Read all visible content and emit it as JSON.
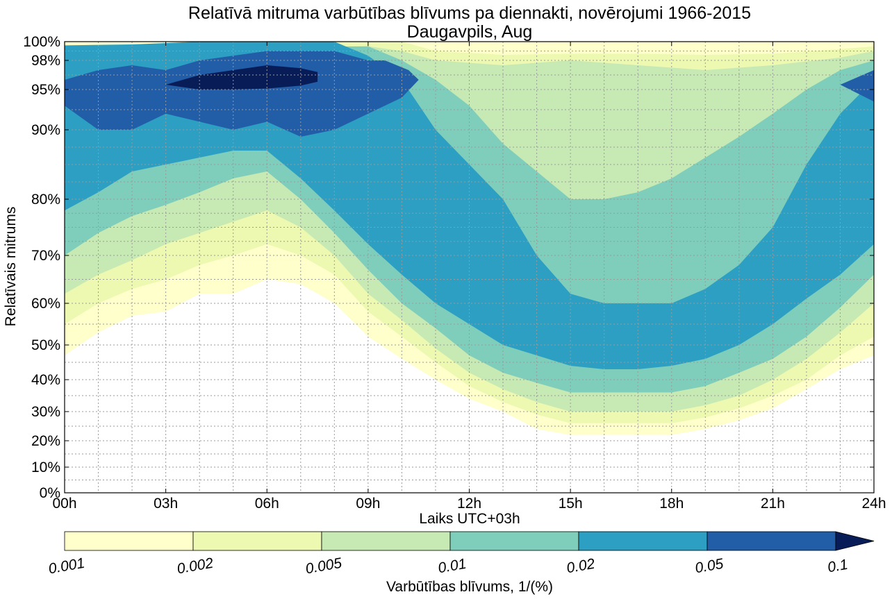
{
  "chart_data": {
    "type": "contourf",
    "title": "Relatīvā mitruma varbūtības blīvums pa diennakti, novērojumi 1966-2015",
    "subtitle": "Daugavpils, Aug",
    "xlabel": "Laiks UTC+03h",
    "ylabel": "Relatīvais mitrums",
    "x_ticks": [
      "00h",
      "03h",
      "06h",
      "09h",
      "12h",
      "15h",
      "18h",
      "21h",
      "24h"
    ],
    "xlim": [
      0,
      24
    ],
    "y_ticks": [
      {
        "value": 0,
        "label": "0%"
      },
      {
        "value": 10,
        "label": "10%"
      },
      {
        "value": 20,
        "label": "20%"
      },
      {
        "value": 30,
        "label": "30%"
      },
      {
        "value": 40,
        "label": "40%"
      },
      {
        "value": 50,
        "label": "50%"
      },
      {
        "value": 60,
        "label": "60%"
      },
      {
        "value": 70,
        "label": "70%"
      },
      {
        "value": 80,
        "label": "80%"
      },
      {
        "value": 90,
        "label": "90%"
      },
      {
        "value": 95,
        "label": "95%"
      },
      {
        "value": 98,
        "label": "98%"
      },
      {
        "value": 100,
        "label": "100%"
      }
    ],
    "ylim": [
      0,
      100
    ],
    "grid": true,
    "colorbar": {
      "label": "Varbūtības blīvums, 1/(%)",
      "levels": [
        "0.001",
        "0.002",
        "0.005",
        "0.01",
        "0.02",
        "0.05",
        "0.1"
      ],
      "colors": [
        "#ffffcc",
        "#edf8b1",
        "#c7e9b4",
        "#7fcdbb",
        "#2c9fc3",
        "#225ea8",
        "#081d58"
      ],
      "extend": "max"
    },
    "contours": [
      {
        "level": "0.001",
        "color": "#ffffcc",
        "lower": [
          [
            0,
            47
          ],
          [
            1,
            53
          ],
          [
            2,
            57
          ],
          [
            3,
            58
          ],
          [
            4,
            62
          ],
          [
            5,
            62
          ],
          [
            6,
            65
          ],
          [
            7,
            64
          ],
          [
            8,
            60
          ],
          [
            9,
            52
          ],
          [
            10,
            46
          ],
          [
            11,
            40
          ],
          [
            12,
            34
          ],
          [
            13,
            30
          ],
          [
            14,
            24
          ],
          [
            15,
            22
          ],
          [
            16,
            22
          ],
          [
            17,
            22
          ],
          [
            18,
            22
          ],
          [
            19,
            24
          ],
          [
            20,
            27
          ],
          [
            21,
            31
          ],
          [
            22,
            37
          ],
          [
            23,
            43
          ],
          [
            24,
            47
          ]
        ],
        "upper": [
          [
            0,
            100
          ],
          [
            24,
            100
          ]
        ]
      },
      {
        "level": "0.002",
        "color": "#edf8b1",
        "lower": [
          [
            0,
            55
          ],
          [
            1,
            60
          ],
          [
            2,
            63
          ],
          [
            3,
            65
          ],
          [
            4,
            68
          ],
          [
            5,
            70
          ],
          [
            6,
            72
          ],
          [
            7,
            70
          ],
          [
            8,
            66
          ],
          [
            9,
            58
          ],
          [
            10,
            52
          ],
          [
            11,
            45
          ],
          [
            12,
            38
          ],
          [
            13,
            33
          ],
          [
            14,
            29
          ],
          [
            15,
            26
          ],
          [
            16,
            26
          ],
          [
            17,
            26
          ],
          [
            18,
            26
          ],
          [
            19,
            28
          ],
          [
            20,
            31
          ],
          [
            21,
            35
          ],
          [
            22,
            40
          ],
          [
            23,
            47
          ],
          [
            24,
            52
          ]
        ],
        "upper": [
          [
            0,
            99.3
          ],
          [
            2,
            99.5
          ],
          [
            4,
            100
          ],
          [
            10,
            100
          ],
          [
            11,
            99
          ],
          [
            13,
            98.6
          ],
          [
            15,
            98.7
          ],
          [
            17,
            98.7
          ],
          [
            19,
            98.6
          ],
          [
            21,
            98.7
          ],
          [
            23,
            99.2
          ],
          [
            24,
            99.5
          ]
        ]
      },
      {
        "level": "0.005",
        "color": "#c7e9b4",
        "lower": [
          [
            0,
            62
          ],
          [
            1,
            66
          ],
          [
            2,
            69
          ],
          [
            3,
            72
          ],
          [
            4,
            74
          ],
          [
            5,
            76
          ],
          [
            6,
            78
          ],
          [
            7,
            75
          ],
          [
            8,
            70
          ],
          [
            9,
            62
          ],
          [
            10,
            56
          ],
          [
            11,
            49
          ],
          [
            12,
            42
          ],
          [
            13,
            37
          ],
          [
            14,
            33
          ],
          [
            15,
            30
          ],
          [
            16,
            30
          ],
          [
            17,
            30
          ],
          [
            18,
            30
          ],
          [
            19,
            32
          ],
          [
            20,
            35
          ],
          [
            21,
            40
          ],
          [
            22,
            46
          ],
          [
            23,
            53
          ],
          [
            24,
            60
          ]
        ],
        "upper": [
          [
            0,
            98.5
          ],
          [
            4,
            99
          ],
          [
            9,
            99.5
          ],
          [
            10,
            99
          ],
          [
            11,
            98
          ],
          [
            13,
            97.5
          ],
          [
            15,
            98
          ],
          [
            17,
            97.5
          ],
          [
            19,
            97
          ],
          [
            21,
            97.5
          ],
          [
            23,
            98.3
          ],
          [
            24,
            99
          ]
        ]
      },
      {
        "level": "0.01",
        "color": "#7fcdbb",
        "lower": [
          [
            0,
            70
          ],
          [
            1,
            74
          ],
          [
            2,
            77
          ],
          [
            3,
            79
          ],
          [
            4,
            81
          ],
          [
            5,
            83
          ],
          [
            6,
            84
          ],
          [
            7,
            80
          ],
          [
            8,
            74
          ],
          [
            9,
            67
          ],
          [
            10,
            60
          ],
          [
            11,
            54
          ],
          [
            12,
            47
          ],
          [
            13,
            42
          ],
          [
            14,
            39
          ],
          [
            15,
            36
          ],
          [
            16,
            36
          ],
          [
            17,
            36
          ],
          [
            18,
            36
          ],
          [
            19,
            38
          ],
          [
            20,
            42
          ],
          [
            21,
            46
          ],
          [
            22,
            52
          ],
          [
            23,
            59
          ],
          [
            24,
            66
          ]
        ],
        "upper": [
          [
            0,
            99
          ],
          [
            4,
            99.4
          ],
          [
            9,
            99.5
          ],
          [
            10,
            98
          ],
          [
            11,
            96
          ],
          [
            12,
            93
          ],
          [
            13,
            88
          ],
          [
            14,
            84
          ],
          [
            15,
            80
          ],
          [
            16,
            80
          ],
          [
            17,
            81
          ],
          [
            18,
            83
          ],
          [
            19,
            86
          ],
          [
            20,
            89
          ],
          [
            21,
            92
          ],
          [
            22,
            95
          ],
          [
            23,
            97
          ],
          [
            24,
            98
          ]
        ]
      },
      {
        "level": "0.02",
        "color": "#2c9fc3",
        "lower": [
          [
            0,
            78
          ],
          [
            1,
            81
          ],
          [
            2,
            84
          ],
          [
            3,
            85
          ],
          [
            4,
            86
          ],
          [
            5,
            87
          ],
          [
            6,
            87
          ],
          [
            7,
            83
          ],
          [
            8,
            78
          ],
          [
            9,
            72
          ],
          [
            10,
            66
          ],
          [
            11,
            60
          ],
          [
            12,
            55
          ],
          [
            13,
            50
          ],
          [
            14,
            47
          ],
          [
            15,
            44
          ],
          [
            16,
            43
          ],
          [
            17,
            43
          ],
          [
            18,
            44
          ],
          [
            19,
            46
          ],
          [
            20,
            50
          ],
          [
            21,
            55
          ],
          [
            22,
            61
          ],
          [
            23,
            66
          ],
          [
            24,
            72
          ]
        ],
        "upper": [
          [
            0,
            99.6
          ],
          [
            2,
            99.7
          ],
          [
            4,
            100
          ],
          [
            8,
            100
          ],
          [
            9,
            98.5
          ],
          [
            10,
            96
          ],
          [
            11,
            90
          ],
          [
            12,
            85
          ],
          [
            13,
            80
          ],
          [
            14,
            70
          ],
          [
            15,
            62
          ],
          [
            16,
            60
          ],
          [
            17,
            60
          ],
          [
            18,
            60
          ],
          [
            19,
            63
          ],
          [
            20,
            68
          ],
          [
            21,
            75
          ],
          [
            22,
            85
          ],
          [
            23,
            92
          ],
          [
            24,
            96
          ]
        ]
      },
      {
        "level": "0.05",
        "color": "#225ea8",
        "lower": [
          [
            0,
            93
          ],
          [
            1,
            90
          ],
          [
            2,
            90
          ],
          [
            3,
            92
          ],
          [
            4,
            91
          ],
          [
            5,
            90
          ],
          [
            6,
            91
          ],
          [
            7,
            89
          ],
          [
            8,
            90
          ],
          [
            9,
            92
          ],
          [
            10,
            94
          ],
          [
            10.5,
            96
          ],
          [
            10.2,
            97
          ],
          [
            9.5,
            98
          ]
        ],
        "upper": [
          [
            0,
            96
          ],
          [
            1,
            97
          ],
          [
            2,
            97.5
          ],
          [
            3,
            97
          ],
          [
            4,
            98
          ],
          [
            5,
            98.5
          ],
          [
            6,
            99
          ],
          [
            7,
            99
          ],
          [
            8,
            99
          ],
          [
            9,
            98
          ],
          [
            9.5,
            98
          ]
        ]
      },
      {
        "level": "0.05b",
        "color": "#225ea8",
        "lower": [
          [
            23,
            95.5
          ],
          [
            24,
            93.5
          ]
        ],
        "upper": [
          [
            23,
            95.5
          ],
          [
            24,
            97
          ]
        ]
      },
      {
        "level": "0.1",
        "color": "#081d58",
        "lower": [
          [
            3,
            95.5
          ],
          [
            4,
            95
          ],
          [
            5,
            95
          ],
          [
            6,
            95.1
          ],
          [
            7,
            95.4
          ],
          [
            7.5,
            95.8
          ]
        ],
        "upper": [
          [
            3,
            95.5
          ],
          [
            4,
            96.5
          ],
          [
            5,
            97
          ],
          [
            6,
            97.5
          ],
          [
            7,
            97.2
          ],
          [
            7.5,
            96.8
          ]
        ]
      }
    ]
  }
}
